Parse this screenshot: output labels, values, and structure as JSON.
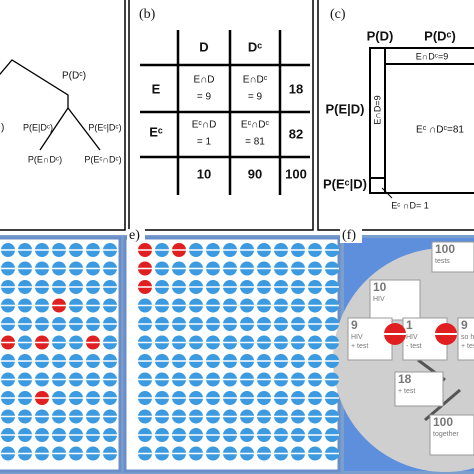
{
  "panel_a": {
    "labels": [
      "P(Dᶜ)",
      "P(E|Dᶜ)",
      "P(Eᶜ|Dᶜ)",
      "P(E∩Dᶜ)",
      "P(Eᶜ∩Dᶜ)",
      ")"
    ]
  },
  "panel_b": {
    "label": "(b)",
    "col_headers": [
      "D",
      "Dᶜ"
    ],
    "row_headers": [
      "E",
      "Eᶜ"
    ],
    "cells": [
      [
        "E∩D",
        "= 9",
        "E∩Dᶜ",
        "= 9",
        "18"
      ],
      [
        "Eᶜ∩D",
        "= 1",
        "Eᶜ∩Dᶜ",
        "= 81",
        "82"
      ]
    ],
    "totals": [
      "10",
      "90",
      "100"
    ]
  },
  "panel_c": {
    "label": "(c)",
    "labels": [
      "P(D)",
      "P(Dᶜ)",
      "E∩Dᶜ=9",
      "P(E|D)",
      "E∩D=9",
      "Eᶜ ∩Dᶜ=81",
      "P(Eᶜ|D)",
      "Eᶜ ∩D= 1"
    ]
  },
  "panel_e": {
    "label": "e)"
  },
  "panel_f": {
    "label": "(f)",
    "boxes": [
      [
        "100",
        "tests"
      ],
      [
        "10",
        "HIV"
      ],
      [
        "9",
        "HIV",
        "+ test"
      ],
      [
        "1",
        "HIV",
        "- test"
      ],
      [
        "9",
        "so h",
        "+ test"
      ],
      [
        "18",
        "+ test"
      ],
      [
        "100",
        "together"
      ]
    ]
  }
}
